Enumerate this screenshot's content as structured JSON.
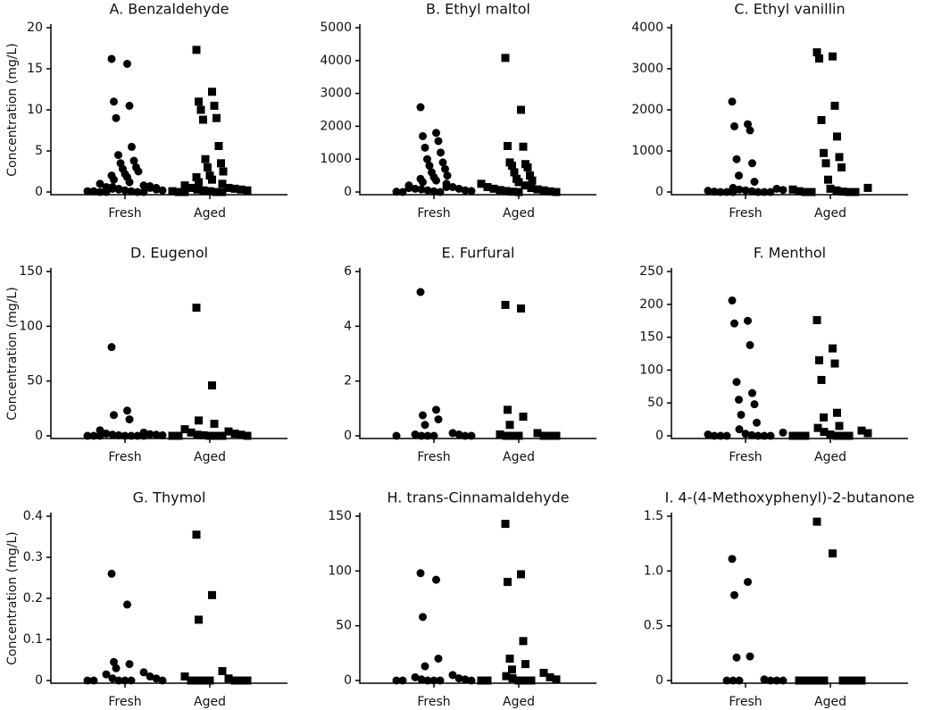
{
  "chart_data": [
    {
      "type": "strip",
      "title": "A. Benzaldehyde",
      "ylabel": "Concentration (mg/L)",
      "categories": [
        "Fresh",
        "Aged"
      ],
      "markers": [
        "circle",
        "square"
      ],
      "color": "#000000",
      "ylim": [
        0,
        20
      ],
      "yticks": [
        0,
        5,
        10,
        15,
        20
      ],
      "values": [
        [
          16.2,
          15.6,
          11,
          10.5,
          9,
          5.5,
          4.5,
          3.8,
          3.5,
          3,
          2.8,
          2.5,
          2.2,
          2,
          1.8,
          1.5,
          1.2,
          1,
          0.8,
          0.6,
          0.5,
          0.4,
          0.3,
          0.3,
          0.2,
          0.2,
          0.1,
          0.1,
          0.1,
          0,
          0,
          0,
          0,
          0.7,
          0.6,
          0.5,
          0.4
        ],
        [
          17.3,
          12.2,
          11,
          10.5,
          10,
          9,
          8.8,
          5.6,
          4,
          3.5,
          3,
          2.5,
          2,
          1.8,
          1.5,
          1.2,
          1,
          0.8,
          0.5,
          0.5,
          0.4,
          0.3,
          0.3,
          0.2,
          0.2,
          0.1,
          0.1,
          0,
          0,
          0,
          0
        ]
      ]
    },
    {
      "type": "strip",
      "title": "B. Ethyl maltol",
      "categories": [
        "Fresh",
        "Aged"
      ],
      "markers": [
        "circle",
        "square"
      ],
      "color": "#000000",
      "ylim": [
        0,
        5000
      ],
      "yticks": [
        0,
        1000,
        2000,
        3000,
        4000,
        5000
      ],
      "values": [
        [
          2580,
          1800,
          1700,
          1550,
          1350,
          1200,
          1000,
          900,
          800,
          700,
          600,
          500,
          450,
          400,
          350,
          300,
          250,
          200,
          150,
          100,
          100,
          80,
          50,
          50,
          30,
          20,
          10,
          0,
          0,
          150,
          120
        ],
        [
          4080,
          2500,
          1400,
          1380,
          900,
          850,
          800,
          750,
          600,
          500,
          400,
          350,
          300,
          250,
          200,
          150,
          120,
          100,
          80,
          60,
          50,
          30,
          20,
          10,
          0,
          0
        ]
      ]
    },
    {
      "type": "strip",
      "title": "C. Ethyl vanillin",
      "categories": [
        "Fresh",
        "Aged"
      ],
      "markers": [
        "circle",
        "square"
      ],
      "color": "#000000",
      "ylim": [
        0,
        4000
      ],
      "yticks": [
        0,
        1000,
        2000,
        3000,
        4000
      ],
      "values": [
        [
          2200,
          1650,
          1600,
          1500,
          800,
          700,
          400,
          250,
          100,
          80,
          60,
          50,
          40,
          30,
          20,
          10,
          0,
          0,
          0,
          0,
          0,
          0
        ],
        [
          3400,
          3300,
          3250,
          2100,
          1750,
          1350,
          950,
          850,
          700,
          600,
          300,
          100,
          80,
          60,
          40,
          20,
          10,
          0,
          0,
          0,
          0
        ]
      ]
    },
    {
      "type": "strip",
      "title": "D. Eugenol",
      "ylabel": "Concentration (mg/L)",
      "categories": [
        "Fresh",
        "Aged"
      ],
      "markers": [
        "circle",
        "square"
      ],
      "color": "#000000",
      "ylim": [
        0,
        150
      ],
      "yticks": [
        0,
        50,
        100,
        150
      ],
      "values": [
        [
          81,
          23,
          19,
          15,
          5,
          3,
          2,
          1.5,
          1,
          1,
          0.5,
          0.5,
          0,
          0,
          0,
          0,
          0,
          0,
          0
        ],
        [
          117,
          46,
          14,
          11,
          6,
          4,
          3,
          2,
          1,
          1,
          0.5,
          0,
          0,
          0,
          0,
          0,
          0
        ]
      ]
    },
    {
      "type": "strip",
      "title": "E. Furfural",
      "categories": [
        "Fresh",
        "Aged"
      ],
      "markers": [
        "circle",
        "square"
      ],
      "color": "#000000",
      "ylim": [
        0,
        6
      ],
      "yticks": [
        0,
        2,
        4,
        6
      ],
      "values": [
        [
          5.25,
          0.95,
          0.75,
          0.6,
          0.4,
          0.1,
          0.05,
          0.05,
          0,
          0,
          0,
          0,
          0,
          0
        ],
        [
          4.78,
          4.65,
          0.95,
          0.7,
          0.4,
          0.1,
          0.05,
          0,
          0,
          0,
          0,
          0,
          0
        ]
      ]
    },
    {
      "type": "strip",
      "title": "F. Menthol",
      "categories": [
        "Fresh",
        "Aged"
      ],
      "markers": [
        "circle",
        "square"
      ],
      "color": "#000000",
      "ylim": [
        0,
        250
      ],
      "yticks": [
        0,
        50,
        100,
        150,
        200,
        250
      ],
      "values": [
        [
          206,
          175,
          171,
          138,
          82,
          65,
          55,
          48,
          32,
          20,
          10,
          5,
          3,
          2,
          1,
          0,
          0,
          0,
          0,
          0,
          0
        ],
        [
          176,
          133,
          115,
          110,
          85,
          35,
          28,
          15,
          12,
          8,
          6,
          4,
          2,
          0,
          0,
          0,
          0,
          0,
          0
        ]
      ]
    },
    {
      "type": "strip",
      "title": "G. Thymol",
      "ylabel": "Concentration (mg/L)",
      "categories": [
        "Fresh",
        "Aged"
      ],
      "markers": [
        "circle",
        "square"
      ],
      "color": "#000000",
      "ylim": [
        0,
        0.4
      ],
      "yticks": [
        0,
        0.1,
        0.2,
        0.3,
        0.4
      ],
      "values": [
        [
          0.26,
          0.185,
          0.045,
          0.04,
          0.03,
          0.02,
          0.015,
          0.01,
          0.005,
          0.005,
          0,
          0,
          0,
          0,
          0,
          0
        ],
        [
          0.355,
          0.208,
          0.148,
          0.023,
          0.01,
          0.005,
          0,
          0,
          0,
          0,
          0,
          0,
          0
        ]
      ]
    },
    {
      "type": "strip",
      "title": "H. trans-Cinnamaldehyde",
      "categories": [
        "Fresh",
        "Aged"
      ],
      "markers": [
        "circle",
        "square"
      ],
      "color": "#000000",
      "ylim": [
        0,
        150
      ],
      "yticks": [
        0,
        50,
        100,
        150
      ],
      "values": [
        [
          98,
          92,
          58,
          20,
          13,
          5,
          3,
          2,
          1,
          1,
          0,
          0,
          0,
          0,
          0,
          0
        ],
        [
          143,
          97,
          90,
          36,
          20,
          15,
          10,
          7,
          4,
          3,
          2,
          1,
          0,
          0,
          0,
          0,
          0
        ]
      ]
    },
    {
      "type": "strip",
      "title": "I. 4-(4-Methoxyphenyl)-2-butanone",
      "categories": [
        "Fresh",
        "Aged"
      ],
      "markers": [
        "circle",
        "square"
      ],
      "color": "#000000",
      "ylim": [
        0,
        1.5
      ],
      "yticks": [
        0,
        0.5,
        {
          "value": 1,
          "label": "1.0"
        },
        1.5
      ],
      "values": [
        [
          1.11,
          0.9,
          0.78,
          0.22,
          0.21,
          0.01,
          0,
          0,
          0,
          0,
          0,
          0
        ],
        [
          1.45,
          1.16,
          0,
          0,
          0,
          0,
          0,
          0,
          0,
          0,
          0
        ]
      ]
    }
  ]
}
